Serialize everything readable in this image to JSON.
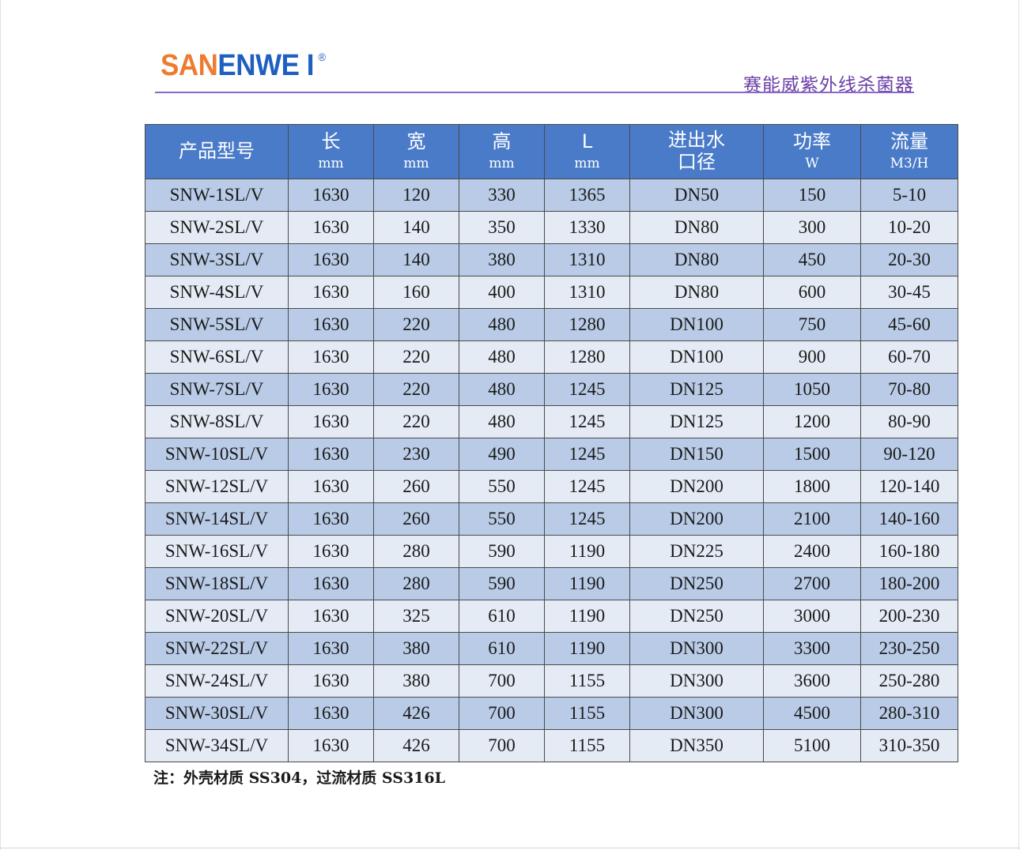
{
  "header": {
    "logo_san": "SAN",
    "logo_enwei": "ENWE I",
    "logo_reg": "®",
    "title": "赛能威紫外线杀菌器"
  },
  "table": {
    "columns": [
      {
        "line1": "产品型号",
        "line2": ""
      },
      {
        "line1": "长",
        "line2": "mm"
      },
      {
        "line1": "宽",
        "line2": "mm"
      },
      {
        "line1": "高",
        "line2": "mm"
      },
      {
        "line1": "L",
        "line2": "mm"
      },
      {
        "line1": "进出水",
        "line2": "口径"
      },
      {
        "line1": "功率",
        "line2": "W"
      },
      {
        "line1": "流量",
        "line2": "M3/H"
      }
    ],
    "rows": [
      [
        "SNW-1SL/V",
        "1630",
        "120",
        "330",
        "1365",
        "DN50",
        "150",
        "5-10"
      ],
      [
        "SNW-2SL/V",
        "1630",
        "140",
        "350",
        "1330",
        "DN80",
        "300",
        "10-20"
      ],
      [
        "SNW-3SL/V",
        "1630",
        "140",
        "380",
        "1310",
        "DN80",
        "450",
        "20-30"
      ],
      [
        "SNW-4SL/V",
        "1630",
        "160",
        "400",
        "1310",
        "DN80",
        "600",
        "30-45"
      ],
      [
        "SNW-5SL/V",
        "1630",
        "220",
        "480",
        "1280",
        "DN100",
        "750",
        "45-60"
      ],
      [
        "SNW-6SL/V",
        "1630",
        "220",
        "480",
        "1280",
        "DN100",
        "900",
        "60-70"
      ],
      [
        "SNW-7SL/V",
        "1630",
        "220",
        "480",
        "1245",
        "DN125",
        "1050",
        "70-80"
      ],
      [
        "SNW-8SL/V",
        "1630",
        "220",
        "480",
        "1245",
        "DN125",
        "1200",
        "80-90"
      ],
      [
        "SNW-10SL/V",
        "1630",
        "230",
        "490",
        "1245",
        "DN150",
        "1500",
        "90-120"
      ],
      [
        "SNW-12SL/V",
        "1630",
        "260",
        "550",
        "1245",
        "DN200",
        "1800",
        "120-140"
      ],
      [
        "SNW-14SL/V",
        "1630",
        "260",
        "550",
        "1245",
        "DN200",
        "2100",
        "140-160"
      ],
      [
        "SNW-16SL/V",
        "1630",
        "280",
        "590",
        "1190",
        "DN225",
        "2400",
        "160-180"
      ],
      [
        "SNW-18SL/V",
        "1630",
        "280",
        "590",
        "1190",
        "DN250",
        "2700",
        "180-200"
      ],
      [
        "SNW-20SL/V",
        "1630",
        "325",
        "610",
        "1190",
        "DN250",
        "3000",
        "200-230"
      ],
      [
        "SNW-22SL/V",
        "1630",
        "380",
        "610",
        "1190",
        "DN300",
        "3300",
        "230-250"
      ],
      [
        "SNW-24SL/V",
        "1630",
        "380",
        "700",
        "1155",
        "DN300",
        "3600",
        "250-280"
      ],
      [
        "SNW-30SL/V",
        "1630",
        "426",
        "700",
        "1155",
        "DN300",
        "4500",
        "280-310"
      ],
      [
        "SNW-34SL/V",
        "1630",
        "426",
        "700",
        "1155",
        "DN350",
        "5100",
        "310-350"
      ]
    ]
  },
  "note": "注：外壳材质 SS304，过流材质 SS316L",
  "colors": {
    "header_bg": "#4a7bc8",
    "row_dark": "#b9cbe6",
    "row_light": "#e4ebf5",
    "title": "#6b3fa6",
    "logo_orange": "#ee7b2f",
    "logo_blue": "#1f5fbf"
  }
}
